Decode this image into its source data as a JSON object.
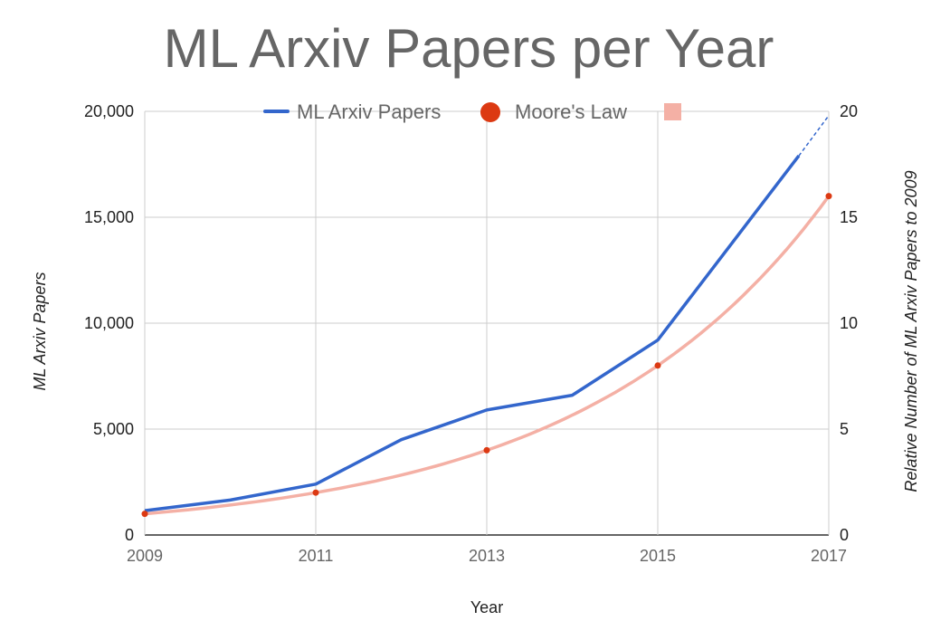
{
  "chart_data": {
    "type": "line",
    "title": "ML Arxiv Papers per Year",
    "xlabel": "Year",
    "ylabel": "ML Arxiv Papers",
    "y2label": "Relative Number of ML Arxiv Papers  to 2009",
    "x": [
      2009,
      2010,
      2011,
      2012,
      2013,
      2014,
      2015,
      2016,
      2017
    ],
    "x_tick_labels": [
      "2009",
      "2011",
      "2013",
      "2015",
      "2017"
    ],
    "xlim": [
      2009,
      2017
    ],
    "ylim": [
      0,
      20000
    ],
    "y_tick_labels": [
      "0",
      "5,000",
      "10,000",
      "15,000",
      "20,000"
    ],
    "y2lim": [
      0,
      20
    ],
    "y2_tick_labels": [
      "0",
      "5",
      "10",
      "15",
      "20"
    ],
    "grid": true,
    "legend_position": "top",
    "series": [
      {
        "name": "ML Arxiv Papers",
        "axis": "left",
        "color": "#3366cc",
        "x": [
          2009,
          2010,
          2011,
          2012,
          2013,
          2014,
          2015,
          2016.65
        ],
        "values": [
          1150,
          1650,
          2400,
          4500,
          5900,
          6600,
          9200,
          17900
        ],
        "projected": {
          "x": [
            2016.65,
            2017
          ],
          "values": [
            17900,
            19800
          ]
        }
      },
      {
        "name": "Moore's Law",
        "axis": "right",
        "color": "#dc3912",
        "x": [
          2009,
          2011,
          2013,
          2015,
          2017
        ],
        "values": [
          1,
          2,
          4,
          8,
          16
        ]
      },
      {
        "name": "",
        "axis": "right",
        "color": "#f4b0a5",
        "curve": "exponential",
        "formula": "2^((year-2009)/2)",
        "x_range": [
          2009,
          2017
        ]
      }
    ]
  }
}
